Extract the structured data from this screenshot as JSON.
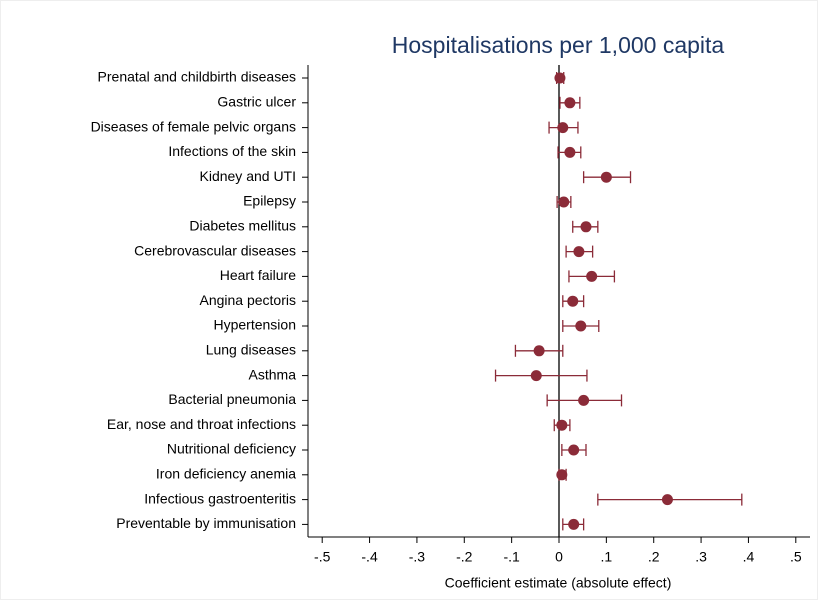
{
  "chart_data": {
    "type": "coefplot",
    "title": "Hospitalisations per 1,000 capita",
    "xlabel": "Coefficient estimate (absolute effect)",
    "categories": [
      "Prenatal and childbirth diseases",
      "Gastric ulcer",
      "Diseases of female pelvic organs",
      "Infections of the skin",
      "Kidney and UTI",
      "Epilepsy",
      "Diabetes mellitus",
      "Cerebrovascular diseases",
      "Heart failure",
      "Angina pectoris",
      "Hypertension",
      "Lung diseases",
      "Asthma",
      "Bacterial pneumonia",
      "Ear, nose and throat infections",
      "Nutritional deficiency",
      "Iron deficiency anemia",
      "Infectious gastroenteritis",
      "Preventable by immunisation"
    ],
    "values": [
      0.002,
      0.023,
      0.008,
      0.023,
      0.1,
      0.01,
      0.057,
      0.042,
      0.069,
      0.029,
      0.046,
      -0.042,
      -0.048,
      0.052,
      0.006,
      0.031,
      0.006,
      0.229,
      0.031
    ],
    "lower": [
      -0.005,
      0.002,
      -0.021,
      -0.002,
      0.052,
      -0.004,
      0.029,
      0.015,
      0.021,
      0.008,
      0.008,
      -0.092,
      -0.134,
      -0.025,
      -0.01,
      0.006,
      0,
      0.082,
      0.008
    ],
    "upper": [
      0.01,
      0.044,
      0.04,
      0.046,
      0.151,
      0.025,
      0.082,
      0.071,
      0.117,
      0.052,
      0.084,
      0.008,
      0.059,
      0.132,
      0.023,
      0.057,
      0.015,
      0.386,
      0.052
    ],
    "color": "#8b2b38",
    "xlim": [
      -0.53,
      0.53
    ],
    "xticks": [
      {
        "value": -0.5,
        "label": "-.5"
      },
      {
        "value": -0.4,
        "label": "-.4"
      },
      {
        "value": -0.3,
        "label": "-.3"
      },
      {
        "value": -0.2,
        "label": "-.2"
      },
      {
        "value": -0.1,
        "label": "-.1"
      },
      0,
      {
        "value": 0.1,
        "label": ".1"
      },
      {
        "value": 0.2,
        "label": ".2"
      },
      {
        "value": 0.3,
        "label": ".3"
      },
      {
        "value": 0.4,
        "label": ".4"
      },
      {
        "value": 0.5,
        "label": ".5"
      }
    ],
    "reference_line": 0
  }
}
